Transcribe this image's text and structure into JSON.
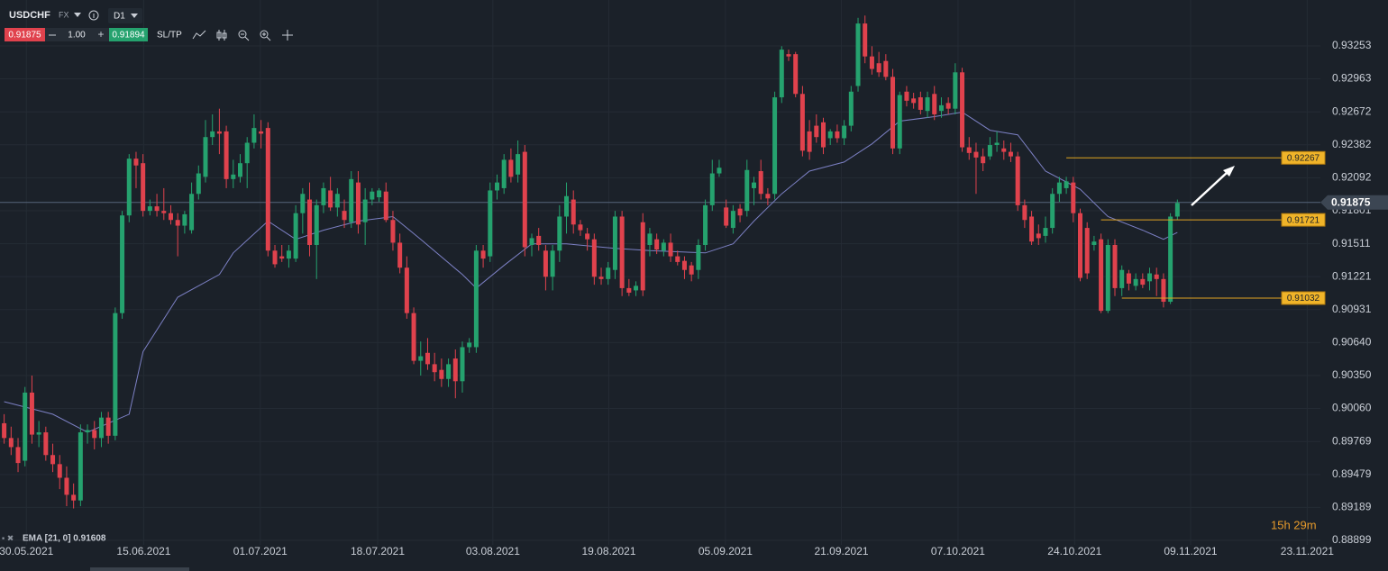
{
  "toolbar": {
    "symbol": "USDCHF",
    "market": "FX",
    "timeframe": "D1",
    "volume": "1.00",
    "ask": "0.91894",
    "sltp": "SL/TP"
  },
  "countdown": "15h 29m",
  "chart_data": {
    "type": "candlestick",
    "colors": {
      "up": "#25a26e",
      "down": "#e0424d"
    },
    "grid": true,
    "current_price": 0.91875,
    "xlim": [
      -0.6,
      189.6
    ],
    "ylim": [
      0.88859,
      0.93657
    ],
    "xticks": [
      {
        "value": 3.2,
        "label": "30.05.2021"
      },
      {
        "value": 20.1,
        "label": "15.06.2021"
      },
      {
        "value": 36.9,
        "label": "01.07.2021"
      },
      {
        "value": 53.8,
        "label": "18.07.2021"
      },
      {
        "value": 70.4,
        "label": "03.08.2021"
      },
      {
        "value": 87.1,
        "label": "19.08.2021"
      },
      {
        "value": 103.9,
        "label": "05.09.2021"
      },
      {
        "value": 120.6,
        "label": "21.09.2021"
      },
      {
        "value": 137.4,
        "label": "07.10.2021"
      },
      {
        "value": 154.2,
        "label": "24.10.2021"
      },
      {
        "value": 170.9,
        "label": "09.11.2021"
      },
      {
        "value": 187.7,
        "label": "23.11.2021"
      }
    ],
    "yticks": [
      0.93253,
      0.92963,
      0.92672,
      0.92382,
      0.92092,
      0.91801,
      0.91511,
      0.91221,
      0.90931,
      {
        "value": 0.9064,
        "label": "0.90640"
      },
      {
        "value": 0.9035,
        "label": "0.90350"
      },
      {
        "value": 0.9006,
        "label": "0.90060"
      },
      0.89769,
      0.89479,
      0.89189,
      0.88899
    ],
    "ema": {
      "name": "EMA [21, 0] 0.91608",
      "color": "#7c80c4",
      "x": [
        0,
        7,
        12,
        18,
        20,
        25,
        31,
        33,
        38,
        42,
        46,
        51,
        56,
        60,
        66,
        68,
        72,
        76,
        81,
        88,
        93,
        101,
        105,
        108,
        112,
        116,
        121,
        125,
        129,
        134,
        138,
        142,
        146,
        150,
        155,
        159,
        164,
        167,
        169
      ],
      "values": [
        0.9012,
        0.9001,
        0.8985,
        0.9001,
        0.9056,
        0.9104,
        0.9124,
        0.9143,
        0.9171,
        0.9155,
        0.9163,
        0.9171,
        0.9175,
        0.9155,
        0.9124,
        0.9112,
        0.9132,
        0.9151,
        0.9151,
        0.9147,
        0.9145,
        0.9143,
        0.9151,
        0.9171,
        0.9195,
        0.9215,
        0.9223,
        0.9239,
        0.9259,
        0.9263,
        0.9267,
        0.9251,
        0.9247,
        0.9215,
        0.9199,
        0.9175,
        0.9163,
        0.9155,
        0.9161
      ]
    },
    "levels": [
      {
        "value": 0.92267,
        "start": 153
      },
      {
        "value": 0.91721,
        "start": 158
      },
      {
        "value": 0.91032,
        "start": 161
      }
    ],
    "candles": [
      [
        0.8993,
        0.9001,
        0.8975,
        0.898
      ],
      [
        0.898,
        0.899,
        0.8965,
        0.8972
      ],
      [
        0.8972,
        0.898,
        0.895,
        0.8958
      ],
      [
        0.896,
        0.9025,
        0.8955,
        0.902
      ],
      [
        0.902,
        0.9035,
        0.8975,
        0.8983
      ],
      [
        0.8983,
        0.8995,
        0.8972,
        0.8985
      ],
      [
        0.8985,
        0.899,
        0.896,
        0.8965
      ],
      [
        0.8965,
        0.8975,
        0.895,
        0.8957
      ],
      [
        0.8957,
        0.8965,
        0.8935,
        0.8945
      ],
      [
        0.8945,
        0.8955,
        0.892,
        0.893
      ],
      [
        0.893,
        0.894,
        0.8918,
        0.8925
      ],
      [
        0.8925,
        0.8992,
        0.892,
        0.8985
      ],
      [
        0.8985,
        0.8992,
        0.8975,
        0.8987
      ],
      [
        0.8987,
        0.8995,
        0.897,
        0.898
      ],
      [
        0.898,
        0.9003,
        0.8972,
        0.8998
      ],
      [
        0.8998,
        0.9003,
        0.8975,
        0.8982
      ],
      [
        0.8982,
        0.9095,
        0.8978,
        0.909
      ],
      [
        0.909,
        0.918,
        0.9085,
        0.9176
      ],
      [
        0.9176,
        0.923,
        0.917,
        0.9226
      ],
      [
        0.9226,
        0.9232,
        0.92,
        0.922
      ],
      [
        0.9222,
        0.923,
        0.9175,
        0.918
      ],
      [
        0.918,
        0.919,
        0.9176,
        0.9184
      ],
      [
        0.9184,
        0.9195,
        0.9175,
        0.918
      ],
      [
        0.918,
        0.92,
        0.9172,
        0.9178
      ],
      [
        0.9178,
        0.9185,
        0.9168,
        0.9172
      ],
      [
        0.9172,
        0.9178,
        0.914,
        0.9167
      ],
      [
        0.9167,
        0.918,
        0.916,
        0.9177
      ],
      [
        0.9163,
        0.9205,
        0.916,
        0.9195
      ],
      [
        0.9195,
        0.922,
        0.919,
        0.9213
      ],
      [
        0.921,
        0.926,
        0.9205,
        0.9245
      ],
      [
        0.9245,
        0.9265,
        0.9238,
        0.925
      ],
      [
        0.925,
        0.927,
        0.923,
        0.9248
      ],
      [
        0.925,
        0.9255,
        0.92,
        0.9208
      ],
      [
        0.9208,
        0.9225,
        0.92,
        0.9212
      ],
      [
        0.921,
        0.923,
        0.9205,
        0.9222
      ],
      [
        0.9222,
        0.9245,
        0.92,
        0.924
      ],
      [
        0.924,
        0.9265,
        0.9235,
        0.9253
      ],
      [
        0.925,
        0.926,
        0.9235,
        0.9248
      ],
      [
        0.9253,
        0.9258,
        0.914,
        0.9145
      ],
      [
        0.9145,
        0.915,
        0.913,
        0.9133
      ],
      [
        0.914,
        0.915,
        0.9135,
        0.9138
      ],
      [
        0.9138,
        0.915,
        0.913,
        0.9145
      ],
      [
        0.9138,
        0.9185,
        0.9135,
        0.9178
      ],
      [
        0.9178,
        0.92,
        0.916,
        0.9195
      ],
      [
        0.919,
        0.9205,
        0.914,
        0.915
      ],
      [
        0.915,
        0.919,
        0.912,
        0.9185
      ],
      [
        0.9185,
        0.9205,
        0.9178,
        0.92
      ],
      [
        0.9198,
        0.921,
        0.918,
        0.9183
      ],
      [
        0.9183,
        0.92,
        0.9175,
        0.9195
      ],
      [
        0.918,
        0.919,
        0.9165,
        0.9172
      ],
      [
        0.917,
        0.9215,
        0.9165,
        0.9208
      ],
      [
        0.9205,
        0.9215,
        0.916,
        0.9168
      ],
      [
        0.917,
        0.92,
        0.915,
        0.919
      ],
      [
        0.919,
        0.92,
        0.9185,
        0.9197
      ],
      [
        0.9192,
        0.92,
        0.9188,
        0.9198
      ],
      [
        0.9197,
        0.9205,
        0.917,
        0.9172
      ],
      [
        0.9172,
        0.918,
        0.9145,
        0.9152
      ],
      [
        0.9152,
        0.916,
        0.9125,
        0.913
      ],
      [
        0.913,
        0.914,
        0.9085,
        0.909
      ],
      [
        0.909,
        0.9095,
        0.9045,
        0.9048
      ],
      [
        0.9048,
        0.9065,
        0.9035,
        0.9052
      ],
      [
        0.9055,
        0.9068,
        0.904,
        0.9045
      ],
      [
        0.9045,
        0.9055,
        0.903,
        0.9038
      ],
      [
        0.904,
        0.905,
        0.9025,
        0.9032
      ],
      [
        0.9032,
        0.905,
        0.9025,
        0.9045
      ],
      [
        0.905,
        0.9058,
        0.9015,
        0.903
      ],
      [
        0.903,
        0.9065,
        0.902,
        0.906
      ],
      [
        0.906,
        0.9068,
        0.9055,
        0.9064
      ],
      [
        0.906,
        0.915,
        0.9055,
        0.9145
      ],
      [
        0.9145,
        0.915,
        0.913,
        0.9138
      ],
      [
        0.914,
        0.9205,
        0.9135,
        0.9198
      ],
      [
        0.9198,
        0.9212,
        0.919,
        0.9205
      ],
      [
        0.92,
        0.923,
        0.9195,
        0.9225
      ],
      [
        0.9225,
        0.9235,
        0.9205,
        0.921
      ],
      [
        0.9212,
        0.9242,
        0.9205,
        0.923
      ],
      [
        0.9232,
        0.9238,
        0.914,
        0.9148
      ],
      [
        0.915,
        0.916,
        0.914,
        0.9156
      ],
      [
        0.9158,
        0.9165,
        0.9145,
        0.915
      ],
      [
        0.9145,
        0.915,
        0.911,
        0.9122
      ],
      [
        0.9122,
        0.915,
        0.911,
        0.9145
      ],
      [
        0.9145,
        0.9185,
        0.9135,
        0.9175
      ],
      [
        0.9175,
        0.9205,
        0.916,
        0.9193
      ],
      [
        0.919,
        0.9198,
        0.916,
        0.9168
      ],
      [
        0.9168,
        0.9172,
        0.9158,
        0.9163
      ],
      [
        0.916,
        0.9165,
        0.9145,
        0.9155
      ],
      [
        0.9155,
        0.916,
        0.9115,
        0.9122
      ],
      [
        0.9122,
        0.913,
        0.9115,
        0.912
      ],
      [
        0.912,
        0.9135,
        0.9115,
        0.913
      ],
      [
        0.9128,
        0.918,
        0.912,
        0.9175
      ],
      [
        0.9175,
        0.918,
        0.9105,
        0.9112
      ],
      [
        0.9112,
        0.912,
        0.9105,
        0.9108
      ],
      [
        0.911,
        0.9118,
        0.9105,
        0.9114
      ],
      [
        0.917,
        0.9178,
        0.9105,
        0.911
      ],
      [
        0.915,
        0.9165,
        0.914,
        0.916
      ],
      [
        0.9155,
        0.916,
        0.9142,
        0.9146
      ],
      [
        0.9145,
        0.9155,
        0.914,
        0.9152
      ],
      [
        0.9152,
        0.916,
        0.9135,
        0.914
      ],
      [
        0.914,
        0.9145,
        0.9132,
        0.9135
      ],
      [
        0.9136,
        0.914,
        0.912,
        0.9128
      ],
      [
        0.9132,
        0.9135,
        0.9118,
        0.9124
      ],
      [
        0.9128,
        0.9155,
        0.912,
        0.915
      ],
      [
        0.915,
        0.919,
        0.9145,
        0.9185
      ],
      [
        0.9185,
        0.9225,
        0.918,
        0.9213
      ],
      [
        0.9213,
        0.9225,
        0.921,
        0.9218
      ],
      [
        0.9183,
        0.919,
        0.9165,
        0.9167
      ],
      [
        0.9165,
        0.9185,
        0.916,
        0.918
      ],
      [
        0.9182,
        0.9186,
        0.917,
        0.9176
      ],
      [
        0.918,
        0.9225,
        0.9175,
        0.9216
      ],
      [
        0.92,
        0.921,
        0.9185,
        0.9205
      ],
      [
        0.9215,
        0.9225,
        0.919,
        0.9195
      ],
      [
        0.9195,
        0.92,
        0.9185,
        0.9191
      ],
      [
        0.9195,
        0.9285,
        0.919,
        0.928
      ],
      [
        0.928,
        0.9325,
        0.9275,
        0.9322
      ],
      [
        0.9318,
        0.9322,
        0.9312,
        0.9316
      ],
      [
        0.9318,
        0.932,
        0.928,
        0.9283
      ],
      [
        0.9283,
        0.929,
        0.9228,
        0.9233
      ],
      [
        0.925,
        0.926,
        0.9225,
        0.9232
      ],
      [
        0.9255,
        0.9265,
        0.924,
        0.9245
      ],
      [
        0.9258,
        0.9262,
        0.923,
        0.9236
      ],
      [
        0.9244,
        0.9252,
        0.9238,
        0.925
      ],
      [
        0.925,
        0.9256,
        0.924,
        0.9244
      ],
      [
        0.9244,
        0.926,
        0.9238,
        0.9255
      ],
      [
        0.9255,
        0.929,
        0.925,
        0.9285
      ],
      [
        0.929,
        0.935,
        0.9285,
        0.9345
      ],
      [
        0.9345,
        0.9352,
        0.931,
        0.9316
      ],
      [
        0.9316,
        0.9325,
        0.93,
        0.9305
      ],
      [
        0.931,
        0.932,
        0.9298,
        0.9302
      ],
      [
        0.9312,
        0.9318,
        0.9295,
        0.9298
      ],
      [
        0.9298,
        0.9305,
        0.923,
        0.9235
      ],
      [
        0.9235,
        0.9285,
        0.923,
        0.9282
      ],
      [
        0.9285,
        0.929,
        0.9272,
        0.9277
      ],
      [
        0.9279,
        0.9284,
        0.927,
        0.9275
      ],
      [
        0.928,
        0.9285,
        0.9265,
        0.9269
      ],
      [
        0.9268,
        0.9285,
        0.9262,
        0.928
      ],
      [
        0.9283,
        0.929,
        0.926,
        0.9265
      ],
      [
        0.9268,
        0.928,
        0.9262,
        0.9273
      ],
      [
        0.9275,
        0.928,
        0.9265,
        0.927
      ],
      [
        0.927,
        0.931,
        0.9265,
        0.9302
      ],
      [
        0.9302,
        0.9306,
        0.9232,
        0.9236
      ],
      [
        0.9236,
        0.9245,
        0.9225,
        0.9231
      ],
      [
        0.9232,
        0.924,
        0.9195,
        0.9227
      ],
      [
        0.9228,
        0.9235,
        0.9215,
        0.9222
      ],
      [
        0.9228,
        0.9245,
        0.9225,
        0.9238
      ],
      [
        0.9238,
        0.925,
        0.9232,
        0.924
      ],
      [
        0.9235,
        0.9242,
        0.9225,
        0.9232
      ],
      [
        0.9232,
        0.924,
        0.9223,
        0.9228
      ],
      [
        0.9228,
        0.9232,
        0.918,
        0.9185
      ],
      [
        0.9185,
        0.919,
        0.9165,
        0.9172
      ],
      [
        0.9175,
        0.918,
        0.915,
        0.9153
      ],
      [
        0.916,
        0.9168,
        0.915,
        0.9156
      ],
      [
        0.9158,
        0.9175,
        0.9152,
        0.9165
      ],
      [
        0.9165,
        0.92,
        0.916,
        0.9195
      ],
      [
        0.9195,
        0.921,
        0.9188,
        0.9205
      ],
      [
        0.92,
        0.921,
        0.9195,
        0.9206
      ],
      [
        0.9205,
        0.921,
        0.917,
        0.9178
      ],
      [
        0.9178,
        0.9182,
        0.9118,
        0.9121
      ],
      [
        0.9165,
        0.917,
        0.912,
        0.9125
      ],
      [
        0.915,
        0.9158,
        0.9145,
        0.9153
      ],
      [
        0.9155,
        0.916,
        0.909,
        0.9092
      ],
      [
        0.9092,
        0.9155,
        0.909,
        0.915
      ],
      [
        0.915,
        0.9155,
        0.9105,
        0.9112
      ],
      [
        0.9112,
        0.9132,
        0.9105,
        0.9128
      ],
      [
        0.9125,
        0.9128,
        0.911,
        0.9116
      ],
      [
        0.9114,
        0.9125,
        0.911,
        0.912
      ],
      [
        0.912,
        0.9125,
        0.9112,
        0.9115
      ],
      [
        0.9118,
        0.913,
        0.911,
        0.9125
      ],
      [
        0.9124,
        0.913,
        0.9105,
        0.912
      ],
      [
        0.912,
        0.9125,
        0.9095,
        0.91
      ],
      [
        0.91,
        0.9178,
        0.9098,
        0.9175
      ],
      [
        0.9175,
        0.919,
        0.9172,
        0.9187
      ]
    ]
  }
}
